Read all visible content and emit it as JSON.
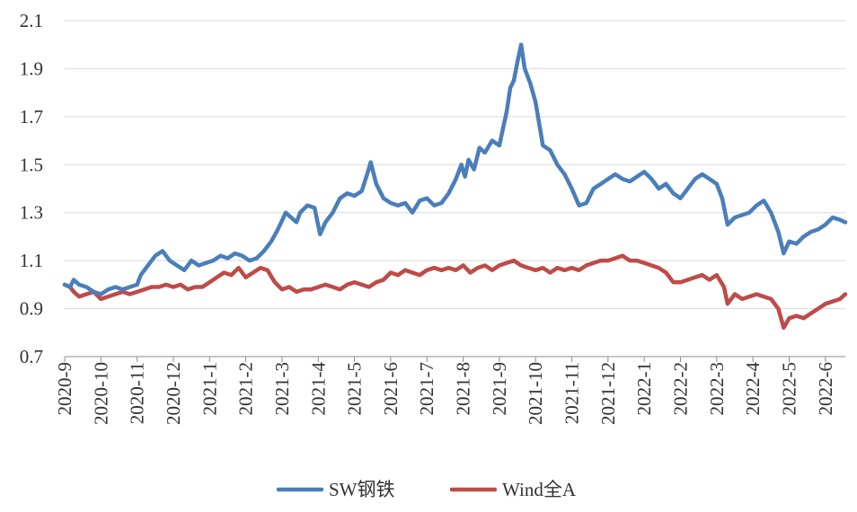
{
  "chart_data": {
    "type": "line",
    "title": "",
    "xlabel": "",
    "ylabel": "",
    "ylim": [
      0.7,
      2.1
    ],
    "yticks": [
      "0.7",
      "0.9",
      "1.1",
      "1.3",
      "1.5",
      "1.7",
      "1.9",
      "2.1"
    ],
    "grid": true,
    "legend_position": "bottom",
    "categories": [
      "2020-9",
      "2020-10",
      "2020-11",
      "2020-12",
      "2021-1",
      "2021-2",
      "2021-3",
      "2021-4",
      "2021-5",
      "2021-6",
      "2021-7",
      "2021-8",
      "2021-9",
      "2021-10",
      "2021-11",
      "2021-12",
      "2022-1",
      "2022-2",
      "2022-3",
      "2022-4",
      "2022-5",
      "2022-6"
    ],
    "x_end": 21.55,
    "series": [
      {
        "name": "SW钢铁",
        "color": "#4a7ebb",
        "x": [
          0,
          0.15,
          0.25,
          0.4,
          0.6,
          0.8,
          1.0,
          1.2,
          1.4,
          1.6,
          1.8,
          2.0,
          2.1,
          2.3,
          2.5,
          2.7,
          2.9,
          3.1,
          3.3,
          3.5,
          3.7,
          3.9,
          4.1,
          4.3,
          4.5,
          4.7,
          4.9,
          5.1,
          5.3,
          5.5,
          5.7,
          5.85,
          5.95,
          6.1,
          6.25,
          6.4,
          6.5,
          6.7,
          6.9,
          7.05,
          7.2,
          7.4,
          7.6,
          7.8,
          8.0,
          8.2,
          8.35,
          8.45,
          8.6,
          8.8,
          9.0,
          9.2,
          9.4,
          9.6,
          9.8,
          10.0,
          10.2,
          10.4,
          10.6,
          10.8,
          10.95,
          11.05,
          11.15,
          11.3,
          11.45,
          11.6,
          11.8,
          12.0,
          12.1,
          12.2,
          12.3,
          12.4,
          12.5,
          12.6,
          12.7,
          12.85,
          13.0,
          13.2,
          13.4,
          13.6,
          13.8,
          14.0,
          14.2,
          14.4,
          14.6,
          14.8,
          15.0,
          15.2,
          15.4,
          15.6,
          15.8,
          16.0,
          16.2,
          16.4,
          16.6,
          16.8,
          17.0,
          17.2,
          17.4,
          17.6,
          17.8,
          18.0,
          18.15,
          18.3,
          18.5,
          18.7,
          18.9,
          19.1,
          19.3,
          19.5,
          19.7,
          19.85,
          20.0,
          20.2,
          20.4,
          20.6,
          20.8,
          21.0,
          21.2,
          21.4,
          21.55
        ],
        "values": [
          1.0,
          0.99,
          1.02,
          1.0,
          0.99,
          0.97,
          0.96,
          0.98,
          0.99,
          0.98,
          0.99,
          1.0,
          1.04,
          1.08,
          1.12,
          1.14,
          1.1,
          1.08,
          1.06,
          1.1,
          1.08,
          1.09,
          1.1,
          1.12,
          1.11,
          1.13,
          1.12,
          1.1,
          1.11,
          1.14,
          1.18,
          1.22,
          1.25,
          1.3,
          1.28,
          1.26,
          1.3,
          1.33,
          1.32,
          1.21,
          1.26,
          1.3,
          1.36,
          1.38,
          1.37,
          1.39,
          1.46,
          1.51,
          1.42,
          1.36,
          1.34,
          1.33,
          1.34,
          1.3,
          1.35,
          1.36,
          1.33,
          1.34,
          1.38,
          1.44,
          1.5,
          1.45,
          1.52,
          1.48,
          1.57,
          1.55,
          1.6,
          1.58,
          1.65,
          1.72,
          1.82,
          1.85,
          1.93,
          2.0,
          1.9,
          1.84,
          1.76,
          1.58,
          1.56,
          1.5,
          1.46,
          1.4,
          1.33,
          1.34,
          1.4,
          1.42,
          1.44,
          1.46,
          1.44,
          1.43,
          1.45,
          1.47,
          1.44,
          1.4,
          1.42,
          1.38,
          1.36,
          1.4,
          1.44,
          1.46,
          1.44,
          1.42,
          1.36,
          1.25,
          1.28,
          1.29,
          1.3,
          1.33,
          1.35,
          1.3,
          1.22,
          1.13,
          1.18,
          1.17,
          1.2,
          1.22,
          1.23,
          1.25,
          1.28,
          1.27,
          1.26
        ]
      },
      {
        "name": "Wind全A",
        "color": "#be4b48",
        "x": [
          0,
          0.15,
          0.25,
          0.4,
          0.6,
          0.8,
          1.0,
          1.2,
          1.4,
          1.6,
          1.8,
          2.0,
          2.2,
          2.4,
          2.6,
          2.8,
          3.0,
          3.2,
          3.4,
          3.6,
          3.8,
          4.0,
          4.2,
          4.4,
          4.6,
          4.8,
          5.0,
          5.2,
          5.4,
          5.6,
          5.8,
          6.0,
          6.2,
          6.4,
          6.6,
          6.8,
          7.0,
          7.2,
          7.4,
          7.6,
          7.8,
          8.0,
          8.2,
          8.4,
          8.6,
          8.8,
          9.0,
          9.2,
          9.4,
          9.6,
          9.8,
          10.0,
          10.2,
          10.4,
          10.6,
          10.8,
          11.0,
          11.2,
          11.4,
          11.6,
          11.8,
          12.0,
          12.2,
          12.4,
          12.6,
          12.8,
          13.0,
          13.2,
          13.4,
          13.6,
          13.8,
          14.0,
          14.2,
          14.4,
          14.6,
          14.8,
          15.0,
          15.2,
          15.4,
          15.6,
          15.8,
          16.0,
          16.2,
          16.4,
          16.6,
          16.8,
          17.0,
          17.2,
          17.4,
          17.6,
          17.8,
          18.0,
          18.2,
          18.3,
          18.5,
          18.7,
          18.9,
          19.1,
          19.3,
          19.5,
          19.7,
          19.85,
          20.0,
          20.2,
          20.4,
          20.6,
          20.8,
          21.0,
          21.2,
          21.4,
          21.55
        ],
        "values": [
          1.0,
          0.99,
          0.97,
          0.95,
          0.96,
          0.97,
          0.94,
          0.95,
          0.96,
          0.97,
          0.96,
          0.97,
          0.98,
          0.99,
          0.99,
          1.0,
          0.99,
          1.0,
          0.98,
          0.99,
          0.99,
          1.01,
          1.03,
          1.05,
          1.04,
          1.07,
          1.03,
          1.05,
          1.07,
          1.06,
          1.01,
          0.98,
          0.99,
          0.97,
          0.98,
          0.98,
          0.99,
          1.0,
          0.99,
          0.98,
          1.0,
          1.01,
          1.0,
          0.99,
          1.01,
          1.02,
          1.05,
          1.04,
          1.06,
          1.05,
          1.04,
          1.06,
          1.07,
          1.06,
          1.07,
          1.06,
          1.08,
          1.05,
          1.07,
          1.08,
          1.06,
          1.08,
          1.09,
          1.1,
          1.08,
          1.07,
          1.06,
          1.07,
          1.05,
          1.07,
          1.06,
          1.07,
          1.06,
          1.08,
          1.09,
          1.1,
          1.1,
          1.11,
          1.12,
          1.1,
          1.1,
          1.09,
          1.08,
          1.07,
          1.05,
          1.01,
          1.01,
          1.02,
          1.03,
          1.04,
          1.02,
          1.04,
          0.99,
          0.92,
          0.96,
          0.94,
          0.95,
          0.96,
          0.95,
          0.94,
          0.9,
          0.82,
          0.86,
          0.87,
          0.86,
          0.88,
          0.9,
          0.92,
          0.93,
          0.94,
          0.96
        ]
      }
    ]
  }
}
